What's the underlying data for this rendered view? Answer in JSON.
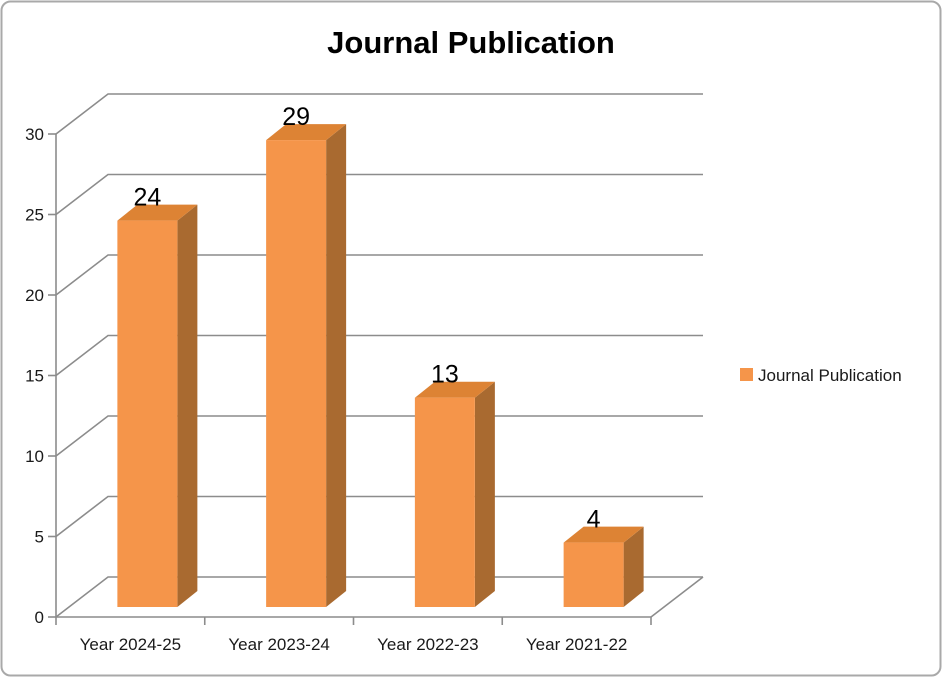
{
  "chart_data": {
    "type": "bar",
    "style": "3d-column",
    "title": "Journal Publication",
    "categories": [
      "Year 2024-25",
      "Year 2023-24",
      "Year 2022-23",
      "Year 2021-22"
    ],
    "series": [
      {
        "name": "Journal Publication",
        "values": [
          24,
          29,
          13,
          4
        ]
      }
    ],
    "data_labels": [
      24,
      29,
      13,
      4
    ],
    "xlabel": "",
    "ylabel": "",
    "y_ticks": [
      0,
      5,
      10,
      15,
      20,
      25,
      30
    ],
    "ylim": [
      0,
      30
    ],
    "grid": true,
    "legend_position": "right",
    "colors": {
      "bar_front": "#F5954A",
      "bar_top": "#DD8334",
      "bar_side": "#A96A30",
      "gridline": "#8C8C8C",
      "text": "#1a1a1a",
      "frame_border": "#A9A9A9",
      "background": "#ffffff"
    }
  },
  "legend": {
    "label": "Journal Publication",
    "swatch_icon": "legend-swatch-square"
  }
}
